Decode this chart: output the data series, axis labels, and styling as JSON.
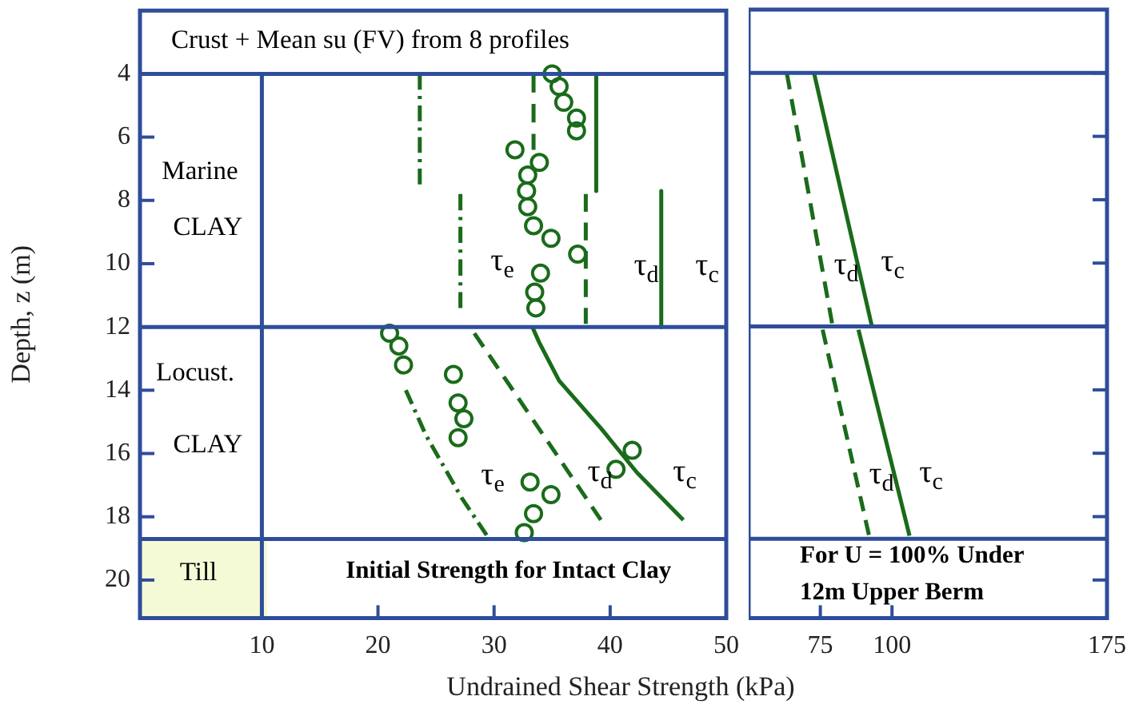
{
  "chart_data": [
    {
      "type": "line",
      "xlabel": "Undrained Shear Strength (kPa)",
      "ylabel": "Depth, z (m)",
      "xlim": [
        -0.5,
        50
      ],
      "xticks": [
        10,
        20,
        30,
        40,
        50
      ],
      "ylim": [
        21.2,
        2
      ],
      "yticks": [
        4,
        6,
        8,
        10,
        12,
        14,
        16,
        18,
        20
      ],
      "series": [
        {
          "type": "scatter",
          "marker": "circle",
          "color": "#1a6b1a",
          "x": [
            35.0,
            35.6,
            36.0,
            37.1,
            37.1,
            31.8,
            33.9,
            32.9,
            32.8,
            32.9,
            33.4,
            34.9,
            37.2,
            34.0,
            33.5,
            33.6,
            21.0,
            21.8,
            22.2,
            26.5,
            26.9,
            27.4,
            26.9,
            41.9,
            40.5,
            33.1,
            34.9,
            33.4,
            32.6
          ],
          "values": [
            4.0,
            4.4,
            4.9,
            5.4,
            5.8,
            6.4,
            6.8,
            7.2,
            7.7,
            8.2,
            8.8,
            9.2,
            9.7,
            10.3,
            10.9,
            11.4,
            12.2,
            12.6,
            13.2,
            13.5,
            14.4,
            14.9,
            15.5,
            15.9,
            16.5,
            16.9,
            17.3,
            17.9,
            18.5
          ]
        },
        {
          "type": "line",
          "line_style": "dashdot",
          "color": "#1a6b1a",
          "x": [
            23.6,
            23.6
          ],
          "values": [
            4.0,
            7.5
          ]
        },
        {
          "type": "line",
          "line_style": "dashdot",
          "color": "#1a6b1a",
          "x": [
            27.1,
            27.1
          ],
          "values": [
            7.8,
            11.4
          ]
        },
        {
          "type": "line",
          "line_style": "dashed",
          "color": "#1a6b1a",
          "x": [
            33.4,
            33.4
          ],
          "values": [
            4.0,
            6.4
          ]
        },
        {
          "type": "line",
          "line_style": "dashed",
          "color": "#1a6b1a",
          "x": [
            37.9,
            37.9
          ],
          "values": [
            7.8,
            11.9
          ]
        },
        {
          "type": "line",
          "line_style": "solid",
          "color": "#1a6b1a",
          "x": [
            38.8,
            38.8
          ],
          "values": [
            4.0,
            7.7
          ]
        },
        {
          "type": "line",
          "line_style": "solid",
          "color": "#1a6b1a",
          "x": [
            44.4,
            44.4
          ],
          "values": [
            7.7,
            12.0
          ]
        },
        {
          "type": "line",
          "line_style": "dashdot",
          "color": "#1a6b1a",
          "x": [
            22.4,
            24.1,
            27.2,
            29.4
          ],
          "values": [
            14.0,
            15.4,
            17.4,
            18.6
          ]
        },
        {
          "type": "line",
          "line_style": "dashed",
          "color": "#1a6b1a",
          "x": [
            28.3,
            39.2
          ],
          "values": [
            12.2,
            18.1
          ]
        },
        {
          "type": "line",
          "line_style": "solid",
          "color": "#1a6b1a",
          "x": [
            33.3,
            33.9,
            35.6,
            39.2,
            42.3,
            46.3
          ],
          "values": [
            12.0,
            12.5,
            13.7,
            15.2,
            16.6,
            18.1
          ]
        }
      ],
      "ref_lines": [
        {
          "axis": "y",
          "value": 4,
          "color": "#2e4d9a"
        },
        {
          "axis": "y",
          "value": 12,
          "color": "#2e4d9a"
        },
        {
          "axis": "y",
          "value": 18.7,
          "color": "#2e4d9a"
        },
        {
          "axis": "x",
          "value": 10,
          "color": "#2e4d9a"
        }
      ],
      "annotations": [
        "Crust + Mean su (FV) from 8 profiles",
        "Marine",
        "CLAY",
        "Locust.",
        "CLAY",
        "Till",
        "Initial Strength for Intact Clay",
        "τ$_{e}$",
        "τ$_{d}$",
        "τ$_{c}$",
        "τ$_{e}$",
        "τ$_{d}$",
        "τ$_{c}$"
      ]
    },
    {
      "type": "line",
      "tick_labels": "x",
      "xlim": [
        50,
        175
      ],
      "xticks": [
        75,
        100,
        175
      ],
      "ylim": [
        21.2,
        2
      ],
      "yticks": [
        4,
        6,
        8,
        10,
        12,
        14,
        16,
        18,
        20
      ],
      "series": [
        {
          "type": "line",
          "line_style": "dashed",
          "color": "#1a6b1a",
          "x": [
            63.3,
            79.1
          ],
          "values": [
            4.0,
            11.9
          ]
        },
        {
          "type": "line",
          "line_style": "solid",
          "color": "#1a6b1a",
          "x": [
            72.8,
            93.0
          ],
          "values": [
            4.0,
            12.0
          ]
        },
        {
          "type": "line",
          "line_style": "dashed",
          "color": "#1a6b1a",
          "x": [
            75.8,
            92.0
          ],
          "values": [
            12.1,
            18.6
          ]
        },
        {
          "type": "line",
          "line_style": "solid",
          "color": "#1a6b1a",
          "x": [
            88.3,
            106.1
          ],
          "values": [
            12.1,
            18.6
          ]
        }
      ],
      "ref_lines": [
        {
          "axis": "y",
          "value": 4,
          "color": "#2e4d9a"
        },
        {
          "axis": "y",
          "value": 12,
          "color": "#2e4d9a"
        },
        {
          "axis": "y",
          "value": 18.7,
          "color": "#2e4d9a"
        }
      ],
      "annotations": [
        "For U = 100% Under",
        "12m Upper Berm",
        "τ$_{d}$",
        "τ$_{c}$",
        "τ$_{d}$",
        "τ$_{c}$"
      ]
    }
  ]
}
